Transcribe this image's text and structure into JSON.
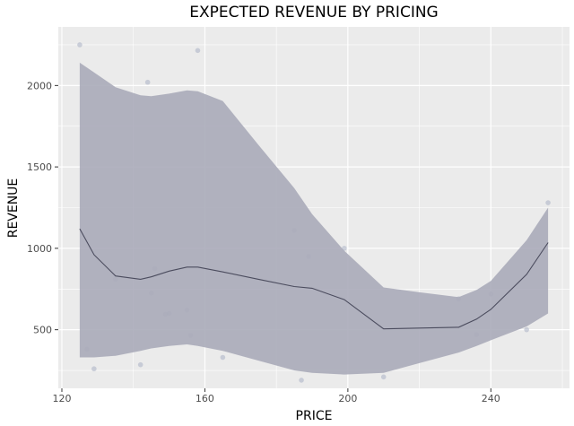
{
  "chart_data": {
    "type": "scatter",
    "title": "EXPECTED REVENUE BY PRICING",
    "xlabel": "PRICE",
    "ylabel": "REVENUE",
    "xlim": [
      119,
      262
    ],
    "ylim": [
      140,
      2360
    ],
    "x_ticks": [
      120,
      160,
      200,
      240
    ],
    "y_ticks": [
      500,
      1000,
      1500,
      2000
    ],
    "x_tick_labels": [
      "120",
      "160",
      "200",
      "240"
    ],
    "y_tick_labels": [
      "500",
      "1000",
      "1500",
      "2000"
    ],
    "grid": true,
    "colors": {
      "panel": "#ebebeb",
      "grid": "#ffffff",
      "points": "#a9b1c4",
      "band": "#aaabb9",
      "line": "#4b4c5e"
    },
    "points": {
      "x": [
        125,
        127,
        129,
        135,
        142,
        144,
        145,
        146,
        149,
        150,
        155,
        156,
        158,
        165,
        185,
        187,
        189,
        199,
        210,
        231,
        236,
        240,
        250,
        256
      ],
      "y": [
        2250,
        380,
        260,
        810,
        285,
        2020,
        725,
        875,
        595,
        600,
        620,
        465,
        2215,
        330,
        1110,
        190,
        950,
        1000,
        210,
        690,
        470,
        720,
        500,
        1280
      ]
    },
    "smooth_line": {
      "x": [
        125,
        129,
        135,
        142,
        145,
        150,
        155,
        158,
        165,
        175,
        185,
        190,
        199,
        210,
        220,
        231,
        236,
        240,
        250,
        256
      ],
      "y": [
        1120,
        960,
        830,
        810,
        825,
        860,
        885,
        885,
        855,
        810,
        765,
        755,
        685,
        505,
        510,
        515,
        565,
        625,
        840,
        1035
      ]
    },
    "confidence_band": {
      "x": [
        125,
        129,
        135,
        142,
        145,
        150,
        155,
        158,
        165,
        175,
        185,
        190,
        199,
        210,
        220,
        231,
        236,
        240,
        250,
        256
      ],
      "upper": [
        2140,
        2080,
        1990,
        1940,
        1935,
        1950,
        1970,
        1965,
        1905,
        1635,
        1370,
        1210,
        985,
        760,
        730,
        700,
        745,
        800,
        1050,
        1250
      ],
      "lower": [
        330,
        330,
        340,
        370,
        385,
        400,
        410,
        400,
        370,
        310,
        250,
        235,
        225,
        235,
        295,
        360,
        400,
        435,
        520,
        600
      ]
    }
  }
}
